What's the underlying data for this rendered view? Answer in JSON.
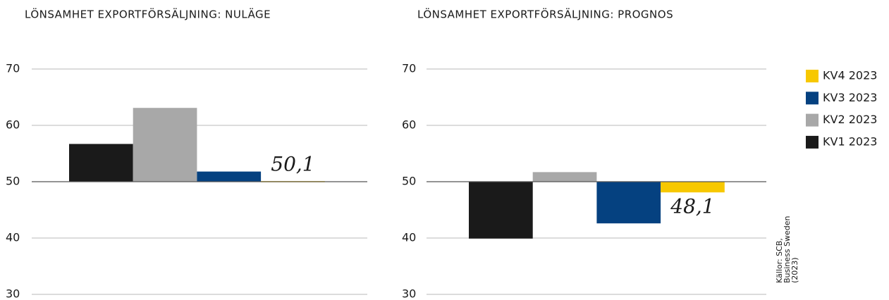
{
  "legend": {
    "items": [
      {
        "name": "KV1 2023",
        "color": "#1a1a1a"
      },
      {
        "name": "KV2 2023",
        "color": "#a8a8a8"
      },
      {
        "name": "KV3 2023",
        "color": "#054180"
      },
      {
        "name": "KV4 2023",
        "color": "#f7c800"
      }
    ]
  },
  "source": {
    "lines": [
      "Källor: SCB,",
      "Business Sweden",
      "(2023)"
    ]
  },
  "chart_data": [
    {
      "type": "bar",
      "title": "LÖNSAMHET EXPORTFÖRSÄLJNING: NULÄGE",
      "values": [
        56.7,
        63.1,
        51.8,
        50.1
      ],
      "value_labels": [
        null,
        null,
        null,
        "50,1"
      ],
      "baseline": 50,
      "ylim": [
        30,
        70
      ],
      "yticks": [
        30,
        40,
        50,
        60,
        70
      ],
      "grid": true
    },
    {
      "type": "bar",
      "title": "LÖNSAMHET EXPORTFÖRSÄLJNING: PROGNOS",
      "values": [
        39.9,
        51.7,
        42.6,
        48.1
      ],
      "value_labels": [
        null,
        null,
        null,
        "48,1"
      ],
      "baseline": 50,
      "ylim": [
        30,
        70
      ],
      "yticks": [
        30,
        40,
        50,
        60,
        70
      ],
      "grid": true
    }
  ]
}
